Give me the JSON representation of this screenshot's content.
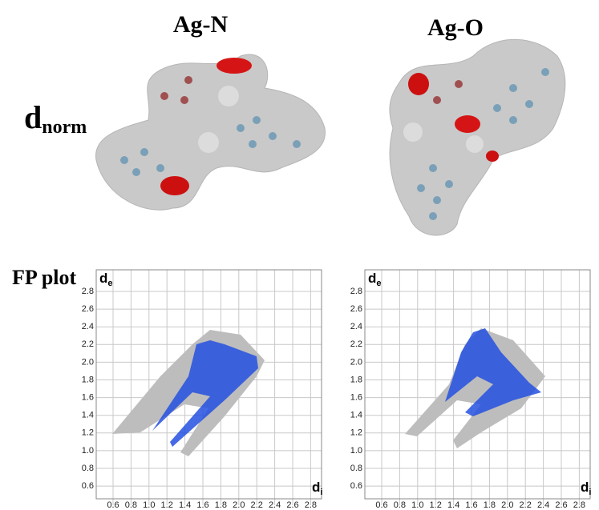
{
  "columns": [
    {
      "title": "Ag-N"
    },
    {
      "title": "Ag-O"
    }
  ],
  "row_labels": {
    "dnorm": {
      "main": "d",
      "sub": "norm"
    },
    "fp": "FP plot"
  },
  "plots": [
    {
      "y_label": {
        "main": "d",
        "sub": "e"
      },
      "x_label": {
        "main": "d",
        "sub": "i"
      },
      "yticks": [
        "2.8",
        "2.6",
        "2.4",
        "2.2",
        "2.0",
        "1.8",
        "1.6",
        "1.4",
        "1.2",
        "1.0",
        "0.8",
        "0.6"
      ],
      "xticks": [
        "0.6",
        "0.8",
        "1.0",
        "1.2",
        "1.4",
        "1.6",
        "1.8",
        "2.0",
        "2.2",
        "2.4",
        "2.6",
        "2.8"
      ]
    },
    {
      "y_label": {
        "main": "d",
        "sub": "e"
      },
      "x_label": {
        "main": "d",
        "sub": "i"
      },
      "yticks": [
        "2.8",
        "2.6",
        "2.4",
        "2.2",
        "2.0",
        "1.8",
        "1.6",
        "1.4",
        "1.2",
        "1.0",
        "0.8",
        "0.6"
      ],
      "xticks": [
        "0.6",
        "0.8",
        "1.0",
        "1.2",
        "1.4",
        "1.6",
        "1.8",
        "2.0",
        "2.2",
        "2.4",
        "2.6",
        "2.8"
      ]
    }
  ]
}
